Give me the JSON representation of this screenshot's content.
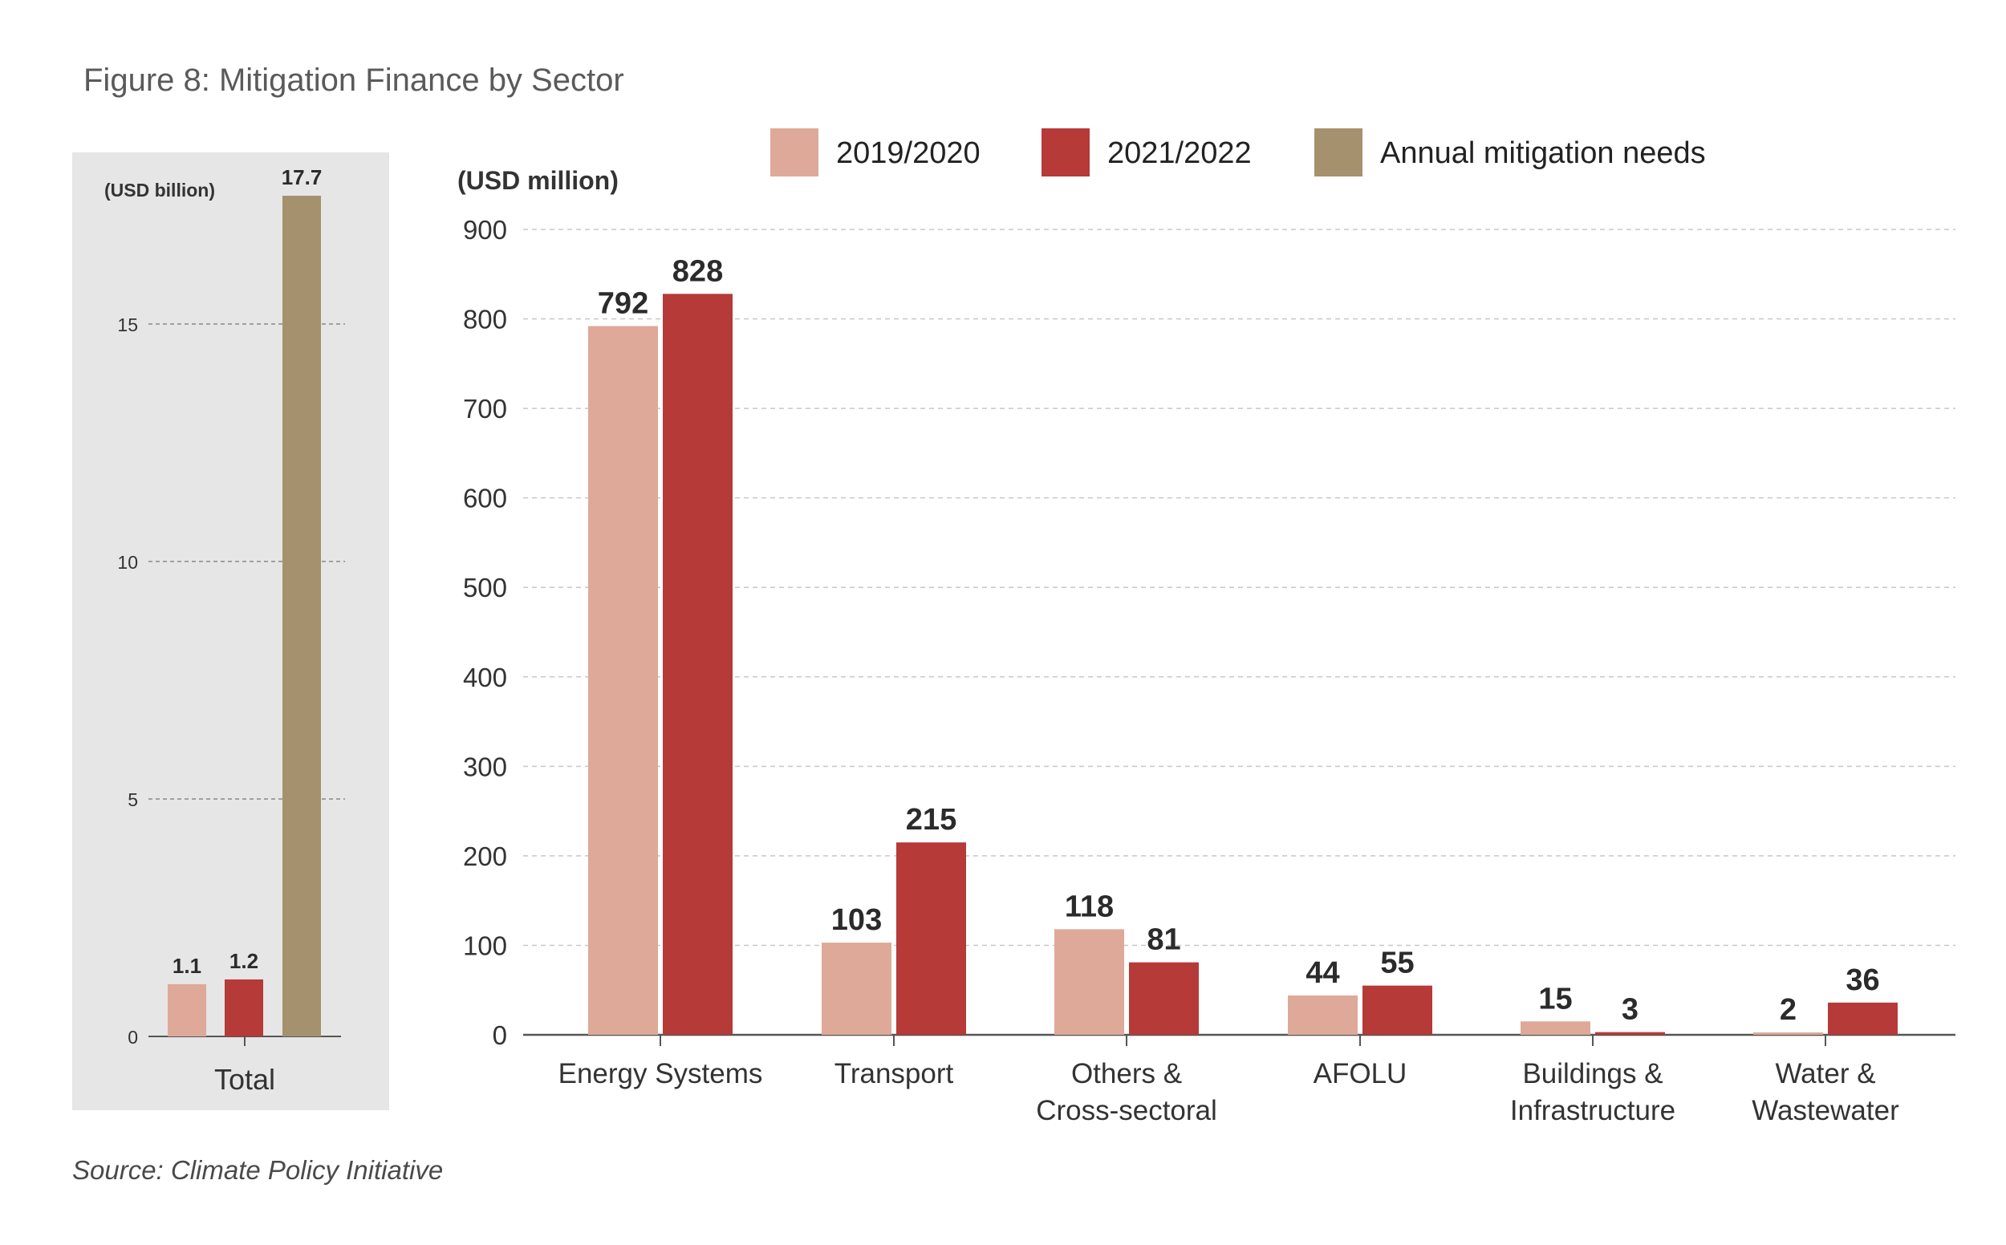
{
  "title": "Figure 8: Mitigation Finance by Sector",
  "source": "Source: Climate Policy Initiative",
  "colors": {
    "2019/2020": "#dea998",
    "2021/2022": "#b53a38",
    "Annual mitigation needs": "#a5916e",
    "panel_bg": "#e6e6e6",
    "grid": "#c8c8c8",
    "axis": "#555555"
  },
  "legend": [
    {
      "label": "2019/2020",
      "color": "#dea998"
    },
    {
      "label": "2021/2022",
      "color": "#b53a38"
    },
    {
      "label": "Annual mitigation needs",
      "color": "#a5916e"
    }
  ],
  "chart_data": [
    {
      "type": "bar",
      "ylabel": "(USD billion)",
      "ylim": [
        0,
        17.7
      ],
      "yticks": [
        0,
        5,
        10,
        15
      ],
      "categories": [
        "Total"
      ],
      "series": [
        {
          "name": "2019/2020",
          "values": [
            1.1
          ],
          "labels": [
            "1.1"
          ]
        },
        {
          "name": "2021/2022",
          "values": [
            1.2
          ],
          "labels": [
            "1.2"
          ]
        },
        {
          "name": "Annual mitigation needs",
          "values": [
            17.7
          ],
          "labels": [
            "17.7"
          ]
        }
      ],
      "grid": true
    },
    {
      "type": "bar",
      "ylabel": "(USD million)",
      "ylim": [
        0,
        900
      ],
      "yticks": [
        0,
        100,
        200,
        300,
        400,
        500,
        600,
        700,
        800,
        900
      ],
      "categories": [
        [
          "Energy Systems"
        ],
        [
          "Transport"
        ],
        [
          "Others &",
          "Cross-sectoral"
        ],
        [
          "AFOLU"
        ],
        [
          "Buildings &",
          "Infrastructure"
        ],
        [
          "Water &",
          "Wastewater"
        ]
      ],
      "series": [
        {
          "name": "2019/2020",
          "values": [
            792,
            103,
            118,
            44,
            15,
            2
          ],
          "labels": [
            "792",
            "103",
            "118",
            "44",
            "15",
            "2"
          ]
        },
        {
          "name": "2021/2022",
          "values": [
            828,
            215,
            81,
            55,
            3,
            36
          ],
          "labels": [
            "828",
            "215",
            "81",
            "55",
            "3",
            "36"
          ]
        }
      ],
      "grid": true,
      "legend_position": "top"
    }
  ]
}
